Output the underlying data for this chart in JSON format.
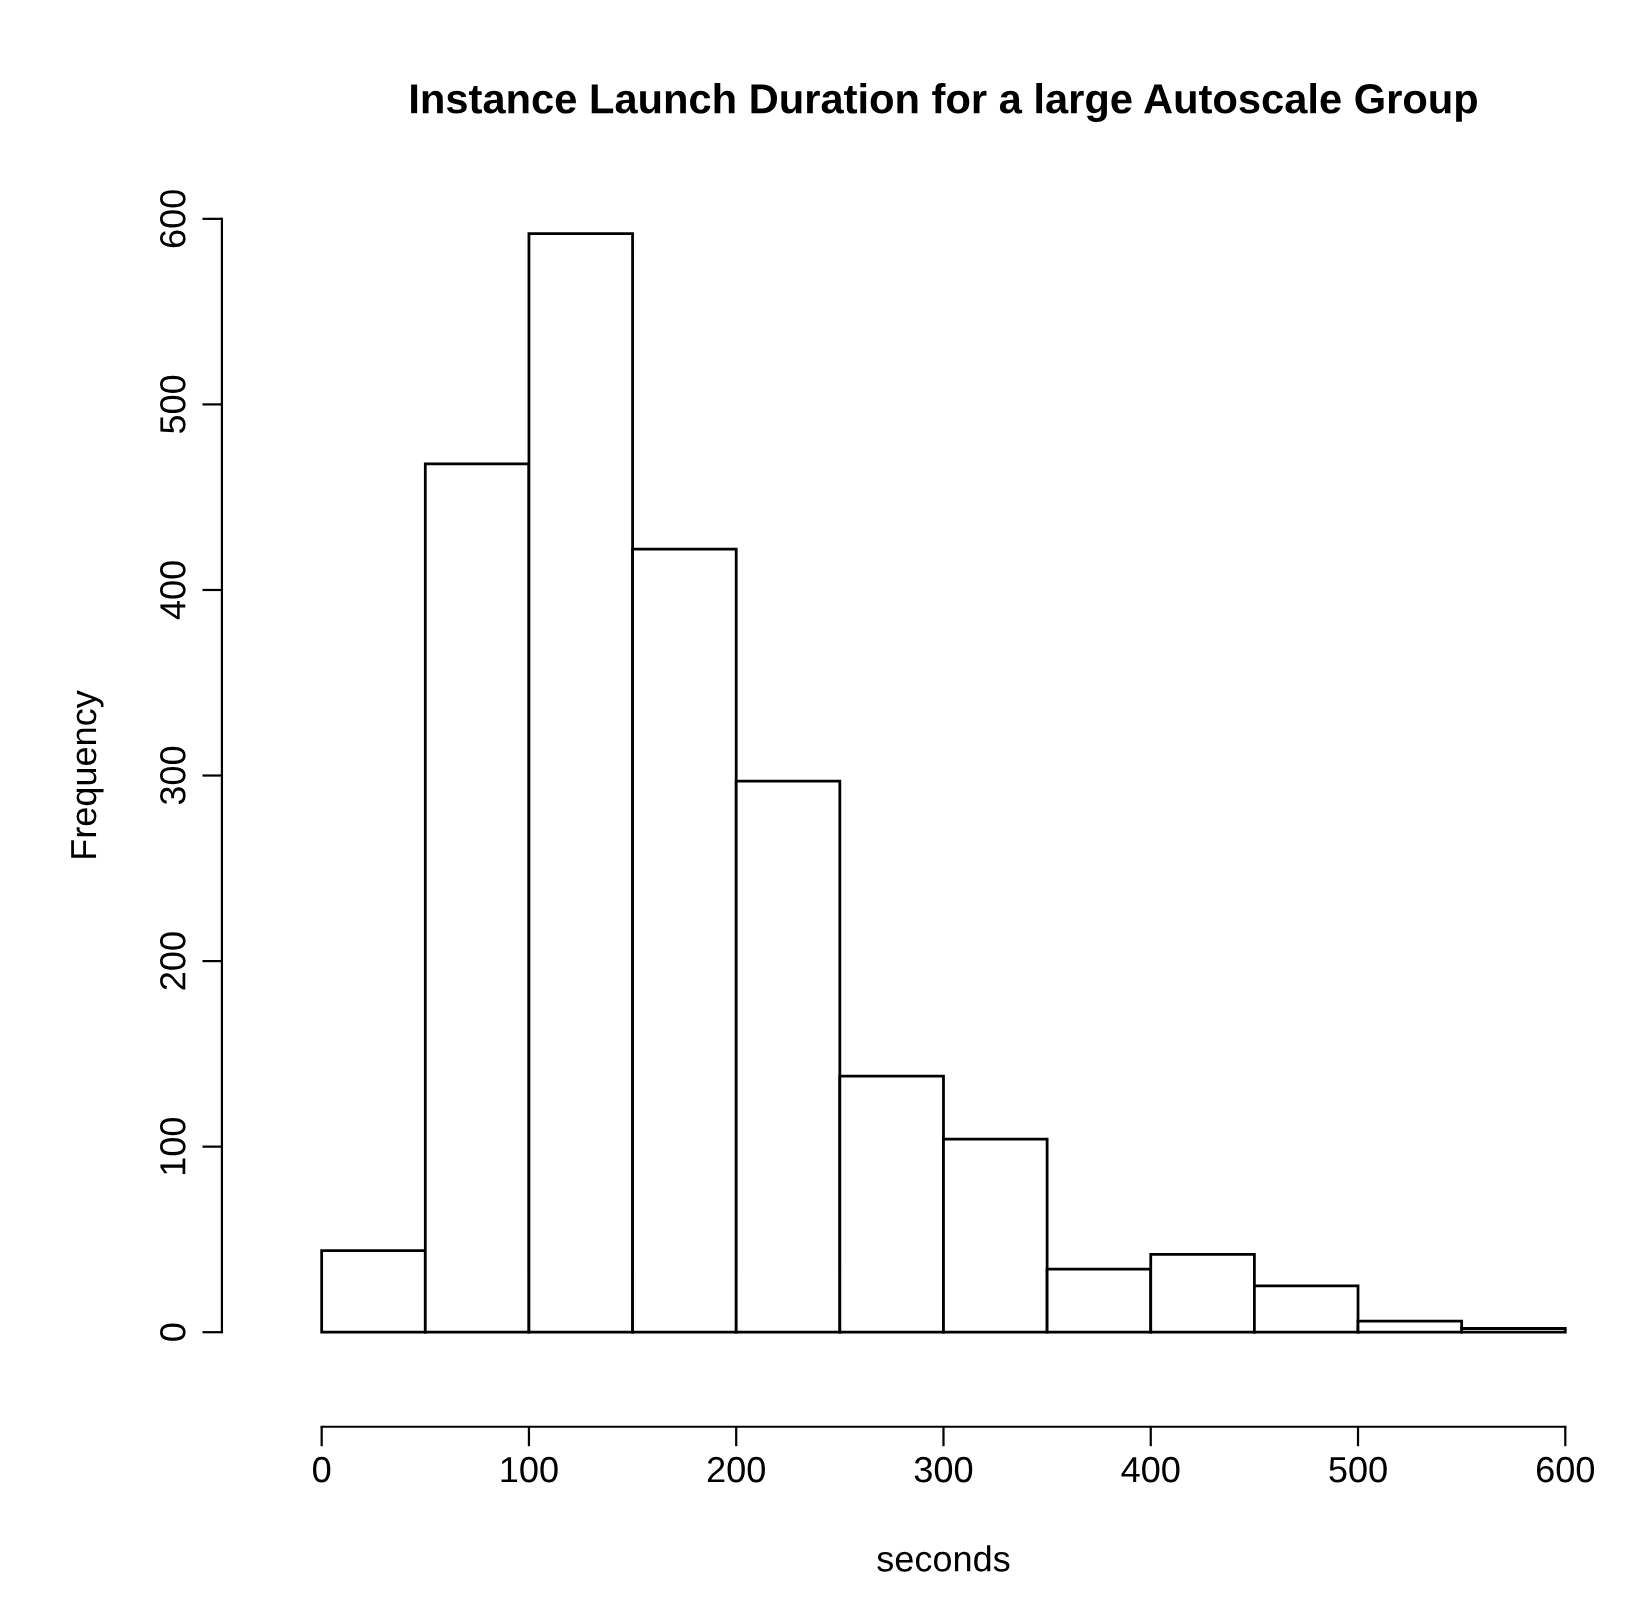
{
  "chart_data": {
    "type": "histogram",
    "title": "Instance Launch Duration for a large Autoscale Group",
    "xlabel": "seconds",
    "ylabel": "Frequency",
    "bins": [
      0,
      50,
      100,
      150,
      200,
      250,
      300,
      350,
      400,
      450,
      500,
      550,
      600
    ],
    "values": [
      44,
      468,
      592,
      422,
      297,
      138,
      104,
      34,
      42,
      25,
      6,
      2
    ],
    "color": "#ffffff",
    "xlim": [
      0,
      600
    ],
    "xticks": [
      0,
      100,
      200,
      300,
      400,
      500,
      600
    ],
    "ylim": [
      0,
      600
    ],
    "yticks": [
      0,
      100,
      200,
      300,
      400,
      500,
      600
    ],
    "grid": false
  }
}
